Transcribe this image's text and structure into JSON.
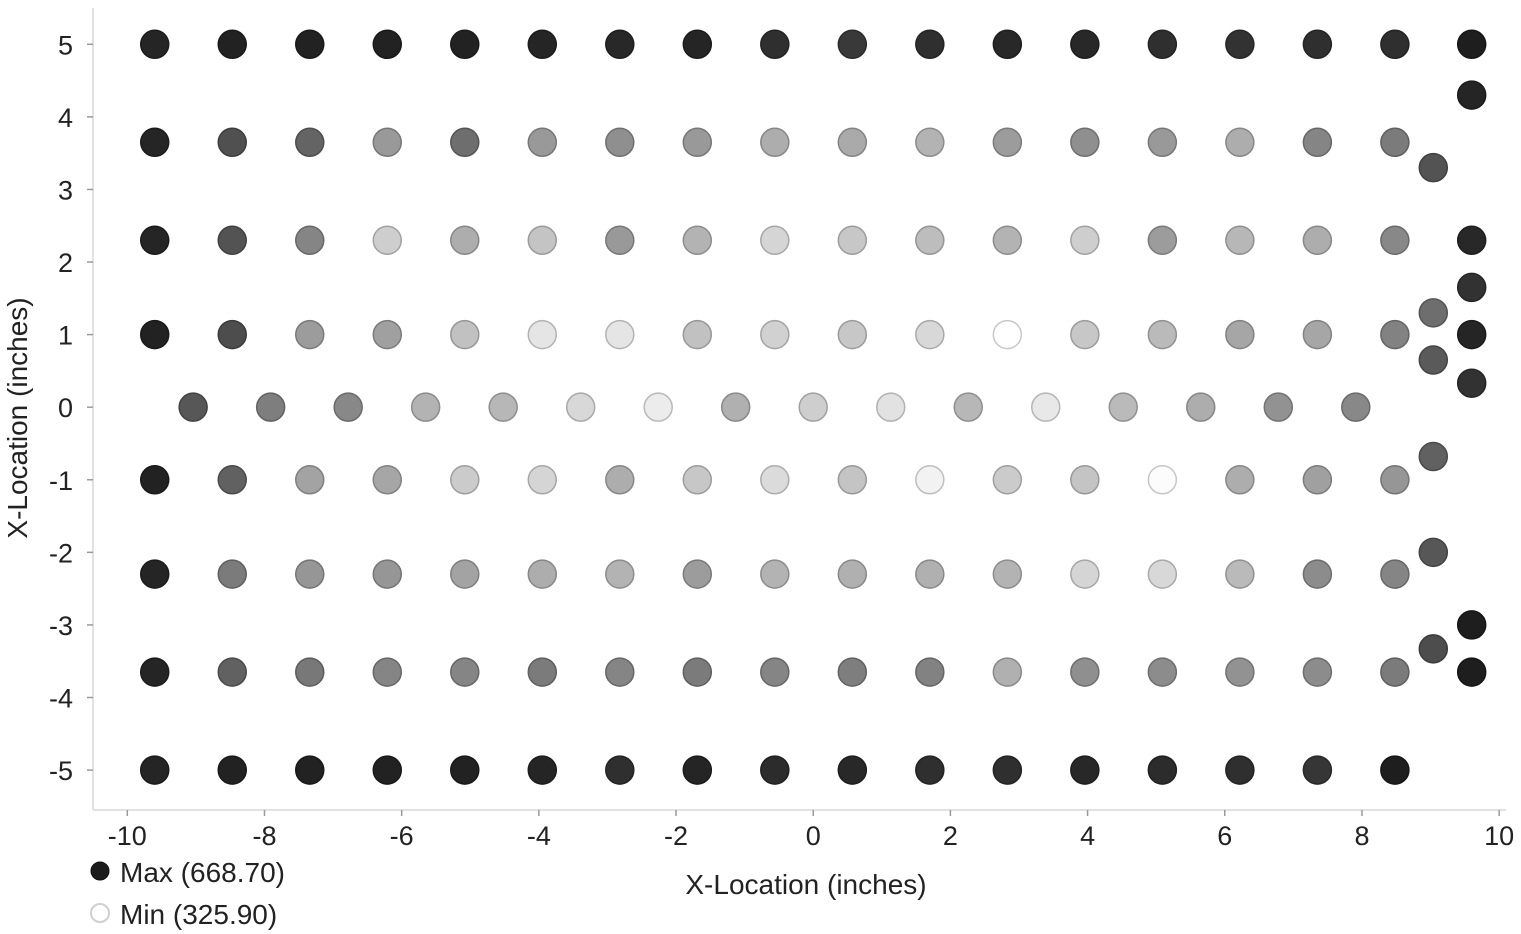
{
  "chart_data": {
    "type": "scatter",
    "xlabel": "X-Location (inches)",
    "ylabel": "X-Location (inches)",
    "xlim": [
      -10.5,
      10.1
    ],
    "ylim": [
      -5.55,
      5.5
    ],
    "x_ticks": [
      -10,
      -8,
      -6,
      -4,
      -2,
      0,
      2,
      4,
      6,
      8,
      10
    ],
    "y_ticks": [
      5,
      4,
      3,
      2,
      1,
      0,
      -1,
      -2,
      -3,
      -4,
      -5
    ],
    "x_tick_labels": [
      "-10",
      "-8",
      "-6",
      "-4",
      "-2",
      "0",
      "2",
      "4",
      "6",
      "8",
      "10"
    ],
    "y_tick_labels": [
      "5",
      "4",
      "3",
      "2",
      "1",
      "0",
      "-1",
      "-2",
      "-3",
      "-4",
      "-5"
    ],
    "color_scale": {
      "max_value": 668.7,
      "min_value": 325.9,
      "max_color": "#1c1c1c",
      "min_color": "#ffffff"
    },
    "legend": {
      "placement": "bottom-left",
      "entries": [
        {
          "label": "Max (668.70)",
          "value": 668.7
        },
        {
          "label": "Min (325.90)",
          "value": 325.9
        }
      ]
    },
    "grid_x": [
      -9.6,
      -8.47,
      -7.34,
      -6.21,
      -5.08,
      -3.95,
      -2.82,
      -1.69,
      -0.56,
      0.57,
      1.7,
      2.83,
      3.96,
      5.09,
      6.22,
      7.35,
      8.48
    ],
    "grid_rows": [
      {
        "y": 5,
        "values": [
          655,
          660,
          660,
          660,
          660,
          655,
          650,
          655,
          640,
          625,
          640,
          650,
          650,
          640,
          635,
          640,
          640
        ]
      },
      {
        "y": 3.65,
        "values": [
          655,
          590,
          560,
          480,
          545,
          480,
          495,
          480,
          450,
          455,
          440,
          475,
          495,
          480,
          450,
          510,
          525
        ]
      },
      {
        "y": 2.3,
        "values": [
          655,
          585,
          510,
          400,
          450,
          415,
          480,
          440,
          390,
          410,
          425,
          440,
          400,
          475,
          435,
          450,
          505
        ]
      },
      {
        "y": 1,
        "values": [
          660,
          595,
          475,
          470,
          420,
          365,
          365,
          420,
          395,
          410,
          385,
          326,
          410,
          430,
          460,
          460,
          515
        ]
      },
      {
        "y": -1,
        "values": [
          660,
          565,
          465,
          460,
          405,
          390,
          450,
          410,
          380,
          415,
          345,
          405,
          415,
          330,
          450,
          470,
          485
        ]
      },
      {
        "y": -2.3,
        "values": [
          655,
          525,
          485,
          485,
          465,
          450,
          440,
          475,
          440,
          445,
          445,
          440,
          390,
          385,
          430,
          500,
          510
        ]
      },
      {
        "y": -3.65,
        "values": [
          655,
          565,
          530,
          510,
          510,
          525,
          510,
          525,
          510,
          520,
          515,
          445,
          495,
          500,
          490,
          500,
          525
        ]
      },
      {
        "y": -5,
        "values": [
          655,
          660,
          660,
          660,
          660,
          655,
          640,
          655,
          645,
          650,
          640,
          640,
          650,
          645,
          640,
          630,
          665
        ]
      }
    ],
    "center_row": {
      "y": 0,
      "x": [
        -9.04,
        -7.91,
        -6.78,
        -5.65,
        -4.52,
        -3.39,
        -2.26,
        -1.13,
        0,
        1.13,
        2.26,
        3.39,
        4.52,
        5.65,
        6.78,
        7.91
      ],
      "values": [
        580,
        520,
        505,
        440,
        435,
        385,
        355,
        445,
        400,
        370,
        435,
        360,
        430,
        450,
        490,
        505
      ]
    },
    "edge_points": [
      {
        "x": 9.6,
        "y": 5,
        "value": 665
      },
      {
        "x": 9.6,
        "y": 4.3,
        "value": 655
      },
      {
        "x": 9.04,
        "y": 3.3,
        "value": 585
      },
      {
        "x": 9.6,
        "y": 2.3,
        "value": 650
      },
      {
        "x": 9.6,
        "y": 1.65,
        "value": 635
      },
      {
        "x": 9.04,
        "y": 1.3,
        "value": 545
      },
      {
        "x": 9.6,
        "y": 1,
        "value": 655
      },
      {
        "x": 9.04,
        "y": 0.65,
        "value": 575
      },
      {
        "x": 9.6,
        "y": 0.33,
        "value": 635
      },
      {
        "x": 9.04,
        "y": -0.68,
        "value": 565
      },
      {
        "x": 9.04,
        "y": -2,
        "value": 580
      },
      {
        "x": 9.6,
        "y": -3,
        "value": 665
      },
      {
        "x": 9.04,
        "y": -3.33,
        "value": 595
      },
      {
        "x": 9.6,
        "y": -3.65,
        "value": 665
      }
    ]
  }
}
